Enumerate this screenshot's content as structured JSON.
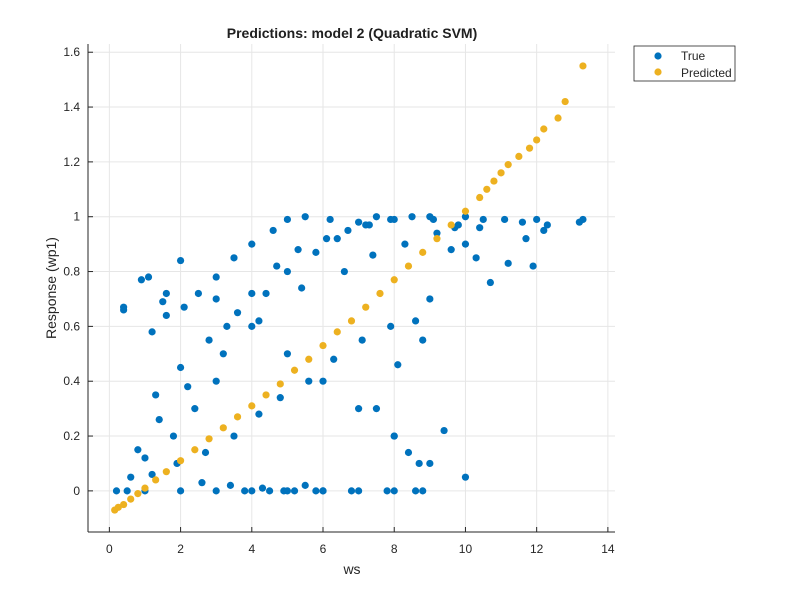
{
  "chart_data": {
    "type": "scatter",
    "title": "Predictions: model 2 (Quadratic SVM)",
    "xlabel": "ws",
    "ylabel": "Response (wp1)",
    "xlim": [
      -0.6,
      14.2
    ],
    "ylim": [
      -0.15,
      1.63
    ],
    "xticks": [
      "0",
      "2",
      "4",
      "6",
      "8",
      "10",
      "12",
      "14"
    ],
    "yticks": [
      "0",
      "0.2",
      "0.4",
      "0.6",
      "0.8",
      "1",
      "1.2",
      "1.4",
      "1.6"
    ],
    "grid": true,
    "legend_position": "outside-top-right",
    "colors": {
      "true": "#0072BD",
      "predicted": "#EDB120"
    },
    "series": [
      {
        "name": "True",
        "color": "#0072BD",
        "x": [
          0.4,
          0.4,
          0.9,
          1.1,
          1.5,
          1.6,
          1.2,
          1.6,
          2.1,
          2.5,
          3.0,
          3.5,
          4.0,
          4.6,
          5.0,
          5.5,
          6.2,
          7.0,
          7.5,
          8.0,
          9.0,
          10.0,
          10.5,
          11.1,
          11.6,
          12.0,
          12.3,
          13.2,
          13.3,
          9.2,
          10.0,
          10.3,
          11.2,
          11.7,
          11.9,
          12.2,
          10.7,
          9.6,
          9.0,
          8.6,
          8.8,
          8.1,
          7.5,
          8.0,
          8.4,
          8.7,
          9.4,
          4.9,
          5.8,
          3.8,
          4.5,
          5.2,
          6.0,
          2.6,
          3.4,
          4.3,
          5.5,
          6.8,
          7.8,
          8.6,
          1.0,
          1.8,
          2.4,
          3.0,
          0.6,
          0.8,
          1.4,
          2.2,
          3.2,
          4.2,
          5.4,
          6.6,
          7.4,
          8.3,
          9.7,
          1.3,
          2.0,
          2.8,
          3.6,
          4.4,
          5.0,
          5.8,
          6.4,
          7.2,
          1.2,
          1.9,
          2.7,
          3.5,
          4.2,
          4.8,
          5.6,
          6.3,
          7.1,
          7.9,
          2.0,
          3.0,
          4.0,
          5.0,
          6.0,
          7.0,
          8.0,
          9.0,
          10.0,
          0.2,
          0.5,
          1.0,
          2.0,
          3.0,
          4.0,
          5.0,
          6.0,
          7.0,
          8.0,
          8.8,
          3.3,
          4.0,
          4.7,
          5.3,
          6.1,
          6.7,
          7.3,
          7.9,
          8.5,
          9.1,
          9.8,
          10.4
        ],
        "y": [
          0.66,
          0.67,
          0.77,
          0.78,
          0.69,
          0.72,
          0.58,
          0.64,
          0.67,
          0.72,
          0.78,
          0.85,
          0.9,
          0.95,
          0.99,
          1.0,
          0.99,
          0.98,
          1.0,
          0.99,
          1.0,
          1.0,
          0.99,
          0.99,
          0.98,
          0.99,
          0.97,
          0.98,
          0.99,
          0.94,
          0.9,
          0.85,
          0.83,
          0.92,
          0.82,
          0.95,
          0.76,
          0.88,
          0.7,
          0.62,
          0.55,
          0.46,
          0.3,
          0.2,
          0.14,
          0.1,
          0.22,
          0.0,
          0.0,
          0.0,
          0.0,
          0.0,
          0.0,
          0.03,
          0.02,
          0.01,
          0.02,
          0.0,
          0.0,
          0.0,
          0.12,
          0.2,
          0.3,
          0.4,
          0.05,
          0.15,
          0.26,
          0.38,
          0.5,
          0.62,
          0.74,
          0.8,
          0.86,
          0.9,
          0.96,
          0.35,
          0.45,
          0.55,
          0.65,
          0.72,
          0.8,
          0.87,
          0.92,
          0.97,
          0.06,
          0.1,
          0.14,
          0.2,
          0.28,
          0.34,
          0.4,
          0.48,
          0.55,
          0.6,
          0.84,
          0.7,
          0.6,
          0.5,
          0.4,
          0.3,
          0.2,
          0.1,
          0.05,
          0.0,
          0.0,
          0.0,
          0.0,
          0.0,
          0.0,
          0.0,
          0.0,
          0.0,
          0.0,
          0.0,
          0.6,
          0.72,
          0.82,
          0.88,
          0.92,
          0.95,
          0.97,
          0.99,
          1.0,
          0.99,
          0.97,
          0.96
        ]
      },
      {
        "name": "Predicted",
        "color": "#EDB120",
        "x": [
          0.15,
          0.25,
          0.4,
          0.6,
          0.8,
          1.0,
          1.3,
          1.6,
          2.0,
          2.4,
          2.8,
          3.2,
          3.6,
          4.0,
          4.4,
          4.8,
          5.2,
          5.6,
          6.0,
          6.4,
          6.8,
          7.2,
          7.6,
          8.0,
          8.4,
          8.8,
          9.2,
          9.6,
          10.0,
          10.4,
          10.6,
          10.8,
          11.0,
          11.2,
          11.5,
          11.8,
          12.0,
          12.2,
          12.6,
          12.8,
          13.3
        ],
        "y": [
          -0.07,
          -0.06,
          -0.05,
          -0.03,
          -0.01,
          0.01,
          0.04,
          0.07,
          0.11,
          0.15,
          0.19,
          0.23,
          0.27,
          0.31,
          0.35,
          0.39,
          0.44,
          0.48,
          0.53,
          0.58,
          0.62,
          0.67,
          0.72,
          0.77,
          0.82,
          0.87,
          0.92,
          0.97,
          1.02,
          1.07,
          1.1,
          1.13,
          1.16,
          1.19,
          1.22,
          1.25,
          1.28,
          1.32,
          1.36,
          1.42,
          1.55
        ]
      }
    ]
  }
}
